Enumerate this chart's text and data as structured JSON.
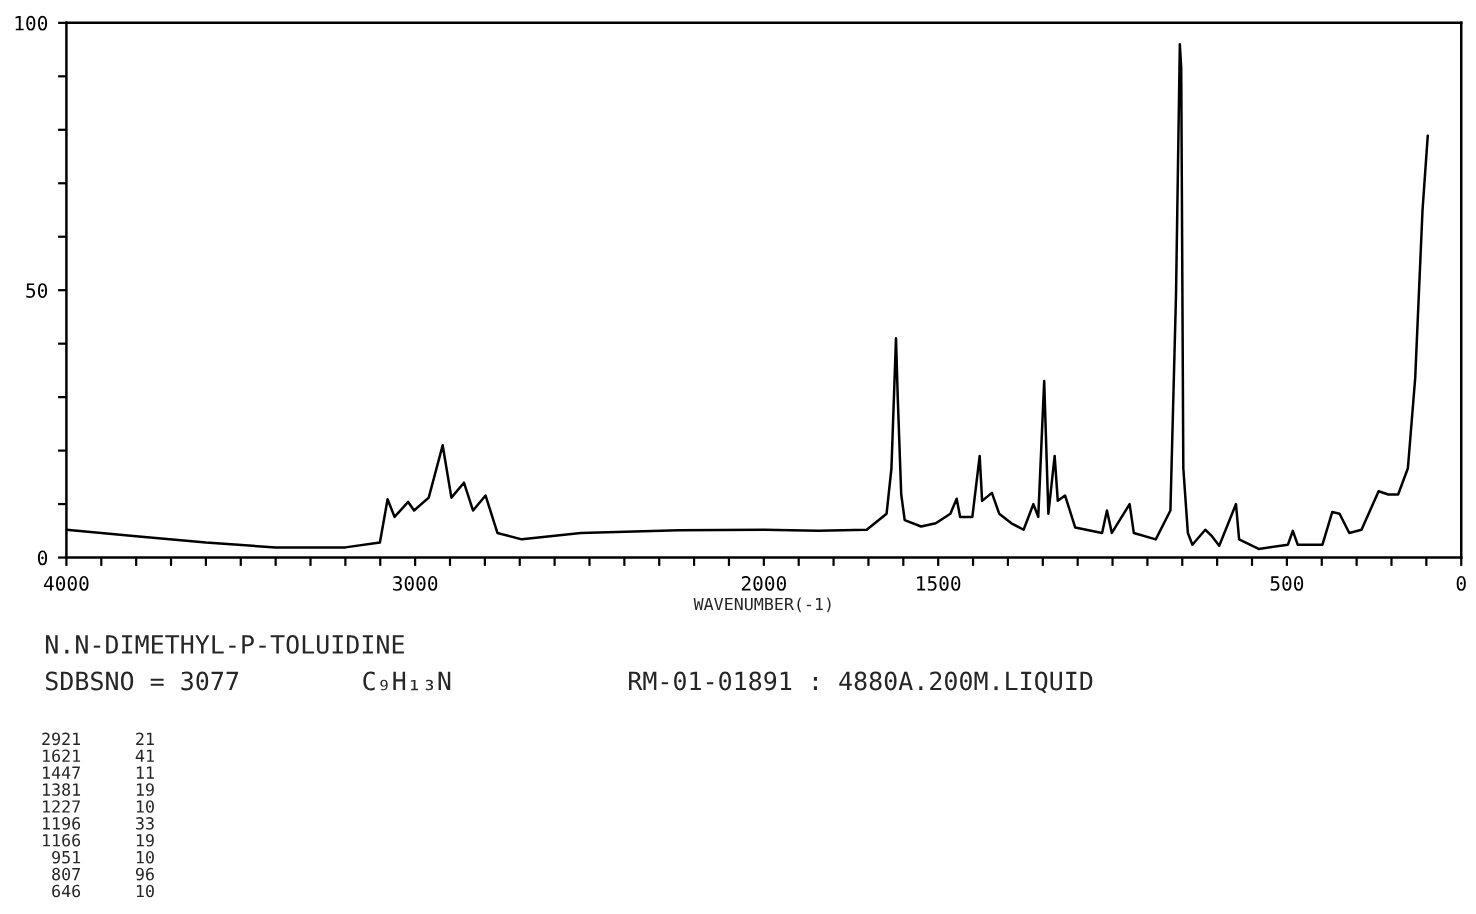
{
  "chart_data": {
    "type": "line",
    "title": "N.N-DIMETHYL-P-TOLUIDINE",
    "xlabel": "WAVENUMBER(-1)",
    "series": [
      {
        "color": "#000000",
        "x": [
          4000,
          3800,
          3600,
          3400,
          3200,
          3101,
          3079,
          3059,
          3020,
          3003,
          2961,
          2921,
          2896,
          2860,
          2834,
          2798,
          2764,
          2694,
          2525,
          2244,
          2000,
          1844,
          1705,
          1648,
          1634,
          1621,
          1616,
          1606,
          1596,
          1549,
          1507,
          1465,
          1447,
          1437,
          1402,
          1381,
          1374,
          1346,
          1325,
          1290,
          1255,
          1227,
          1213,
          1196,
          1184,
          1166,
          1157,
          1136,
          1107,
          1030,
          1016,
          1002,
          951,
          939,
          876,
          834,
          818,
          807,
          803,
          797,
          784,
          771,
          734,
          715,
          694,
          646,
          637,
          581,
          497,
          483,
          469,
          398,
          370,
          349,
          321,
          286,
          237,
          209,
          181,
          153,
          132,
          111,
          96
        ],
        "values": [
          5.2,
          4.0,
          2.8,
          1.9,
          1.9,
          2.8,
          10.9,
          7.6,
          10.4,
          8.8,
          11.2,
          21,
          11.2,
          14.0,
          8.8,
          11.6,
          4.6,
          3.4,
          4.6,
          5.1,
          5.2,
          5.0,
          5.2,
          8.2,
          16.7,
          41,
          30,
          11.8,
          7.0,
          5.8,
          6.4,
          8.2,
          11,
          7.6,
          7.6,
          19,
          10.6,
          12.1,
          8.2,
          6.4,
          5.2,
          10,
          7.6,
          33,
          8.2,
          19,
          10.6,
          11.6,
          5.6,
          4.6,
          8.8,
          4.6,
          10,
          4.6,
          3.4,
          8.8,
          49,
          96,
          91.5,
          16.7,
          4.6,
          2.4,
          5.2,
          4.0,
          2.2,
          10,
          3.4,
          1.6,
          2.4,
          5.0,
          2.4,
          2.4,
          8.5,
          8.2,
          4.6,
          5.2,
          12.4,
          11.8,
          11.8,
          16.7,
          33.6,
          65,
          78.9
        ]
      }
    ],
    "xlim": [
      4000,
      0
    ],
    "xticks": [
      4000,
      {
        "value": 3900,
        "label": null
      },
      {
        "value": 3800,
        "label": null
      },
      {
        "value": 3700,
        "label": null
      },
      {
        "value": 3600,
        "label": null
      },
      {
        "value": 3500,
        "label": null
      },
      {
        "value": 3400,
        "label": null
      },
      {
        "value": 3300,
        "label": null
      },
      {
        "value": 3200,
        "label": null
      },
      {
        "value": 3100,
        "label": null
      },
      3000,
      {
        "value": 2900,
        "label": null
      },
      {
        "value": 2800,
        "label": null
      },
      {
        "value": 2700,
        "label": null
      },
      {
        "value": 2600,
        "label": null
      },
      {
        "value": 2500,
        "label": null
      },
      {
        "value": 2400,
        "label": null
      },
      {
        "value": 2300,
        "label": null
      },
      {
        "value": 2200,
        "label": null
      },
      {
        "value": 2100,
        "label": null
      },
      2000,
      {
        "value": 1900,
        "label": null
      },
      {
        "value": 1800,
        "label": null
      },
      {
        "value": 1700,
        "label": null
      },
      {
        "value": 1600,
        "label": null
      },
      1500,
      {
        "value": 1400,
        "label": null
      },
      {
        "value": 1300,
        "label": null
      },
      {
        "value": 1200,
        "label": null
      },
      {
        "value": 1100,
        "label": null
      },
      {
        "value": 1000,
        "label": null
      },
      {
        "value": 900,
        "label": null
      },
      {
        "value": 800,
        "label": null
      },
      {
        "value": 700,
        "label": null
      },
      {
        "value": 600,
        "label": null
      },
      500,
      {
        "value": 400,
        "label": null
      },
      {
        "value": 300,
        "label": null
      },
      {
        "value": 200,
        "label": null
      },
      {
        "value": 100,
        "label": null
      },
      0
    ],
    "ylim": [
      0,
      100
    ],
    "yticks": [
      0,
      {
        "value": 10,
        "label": null
      },
      {
        "value": 20,
        "label": null
      },
      {
        "value": 30,
        "label": null
      },
      {
        "value": 40,
        "label": null
      },
      50,
      {
        "value": 60,
        "label": null
      },
      {
        "value": 70,
        "label": null
      },
      {
        "value": 80,
        "label": null
      },
      {
        "value": 90,
        "label": null
      },
      100
    ],
    "grid": false,
    "legend": false,
    "annotations": [
      "SDBSNO = 3077",
      "C₉H₁₃N",
      "RM-01-01891 : 4880A.200M.LIQUID",
      "2921 21",
      "1621 41",
      "1447 11",
      "1381 19",
      "1227 10",
      "1196 33",
      "1166 19",
      "951 10",
      "807 96",
      "646 10"
    ]
  }
}
